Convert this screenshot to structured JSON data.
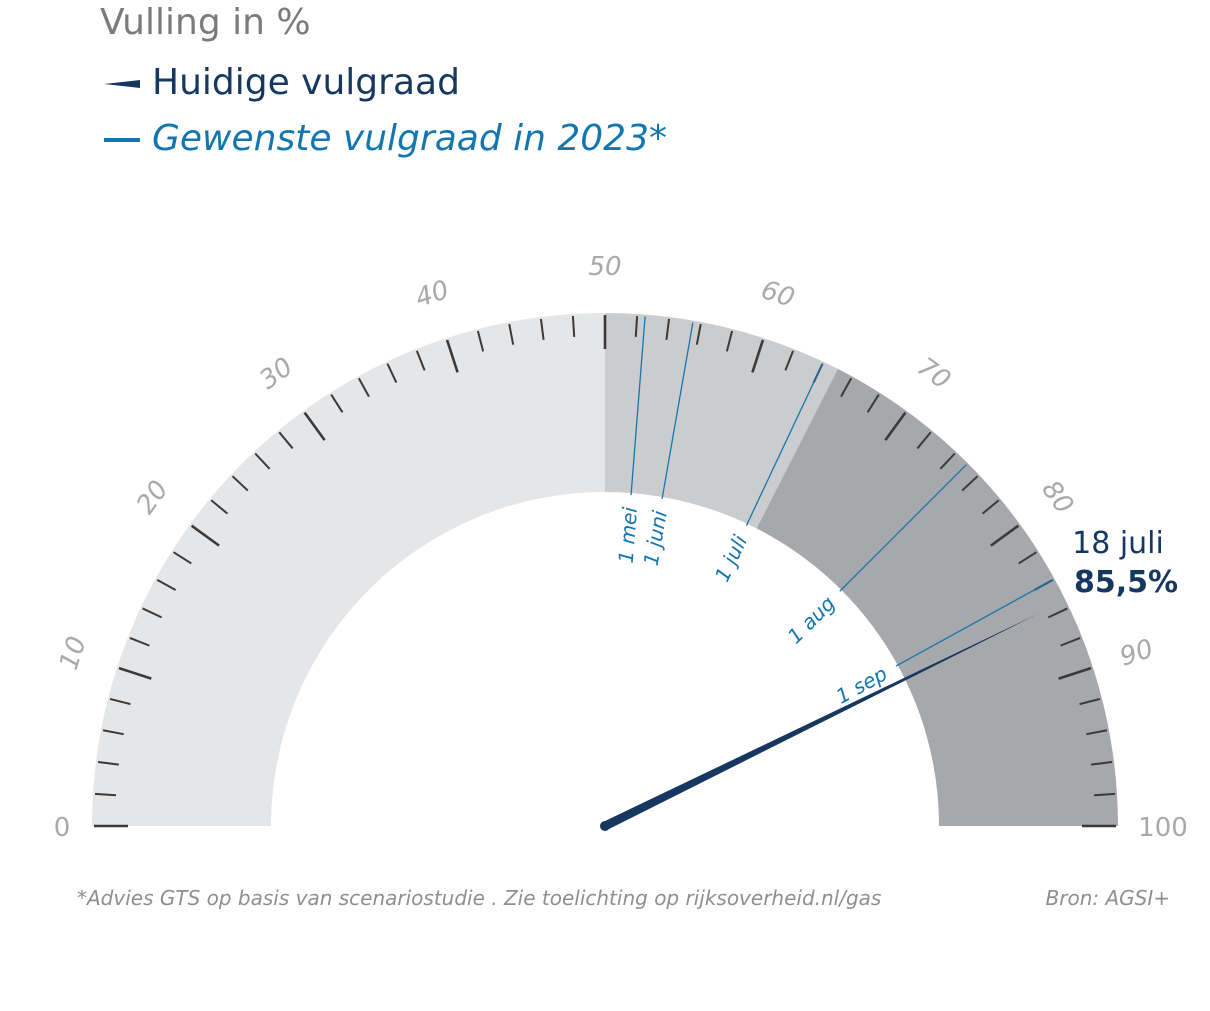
{
  "header": {
    "unit_title": "Vulling in %",
    "legend_current": "Huidige vulgraad",
    "legend_target": "Gewenste vulgraad in 2023*"
  },
  "readout": {
    "date": "18 juli",
    "value": "85,5%"
  },
  "footer": {
    "note": "*Advies GTS op basis van scenariostudie . Zie toelichting op rijksoverheid.nl/gas",
    "source": "Bron: AGSI+"
  },
  "colors": {
    "needle": "#16375f",
    "target_line": "#1376b0",
    "band_light": "#e5e6e8",
    "band_mid": "#cbccce",
    "band_dark": "#a6a8ac",
    "ticks": "#3a3a3a",
    "tick_labels": "#a9a9a9"
  },
  "chart_data": {
    "type": "gauge",
    "title": "Vulling in %",
    "range": [
      0,
      100
    ],
    "tick_labels": [
      "0",
      "10",
      "20",
      "30",
      "40",
      "50",
      "60",
      "70",
      "80",
      "90",
      "100"
    ],
    "bands": [
      {
        "from": 0,
        "to": 50,
        "color": "#e5e6e8"
      },
      {
        "from": 50,
        "to": 65,
        "color": "#cbccce"
      },
      {
        "from": 65,
        "to": 100,
        "color": "#a6a8ac"
      }
    ],
    "series": [
      {
        "name": "Huidige vulgraad",
        "type": "needle",
        "value": 85.5,
        "label_date": "18 juli",
        "label_value": "85,5%"
      },
      {
        "name": "Gewenste vulgraad in 2023*",
        "type": "markers",
        "points": [
          {
            "label": "1 mei",
            "value": 52.5
          },
          {
            "label": "1 juni",
            "value": 55.5
          },
          {
            "label": "1 juli",
            "value": 64
          },
          {
            "label": "1 aug",
            "value": 75
          },
          {
            "label": "1 sep",
            "value": 84
          }
        ]
      }
    ]
  }
}
